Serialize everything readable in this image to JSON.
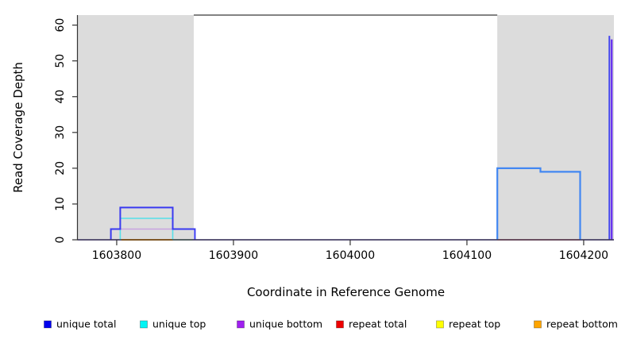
{
  "chart_data": {
    "type": "line",
    "subtype": "step-coverage-plot",
    "title": "",
    "xlabel": "Coordinate in Reference Genome",
    "ylabel": "Read Coverage Depth",
    "xlim": [
      1603766.7,
      1604225.9
    ],
    "ylim": [
      0,
      62.8
    ],
    "x_ticks": [
      1603800,
      1603900,
      1604000,
      1604100,
      1604200
    ],
    "y_ticks": [
      0,
      10,
      20,
      30,
      40,
      50,
      60
    ],
    "grid": false,
    "background_color": "#ffffff",
    "shaded_regions": [
      {
        "name": "left-gray-region",
        "x0": 1603766.7,
        "x1": 1603866,
        "color": "#DCDCDC"
      },
      {
        "name": "right-gray-region",
        "x0": 1604126,
        "x1": 1604225.9,
        "color": "#DCDCDC"
      }
    ],
    "series": [
      {
        "name": "baseline-zero-line",
        "color": "#5A3FE8",
        "width": 1.6,
        "points": [
          [
            1603766.7,
            0
          ],
          [
            1604225.9,
            0
          ]
        ]
      },
      {
        "name": "repeat-bottom-segment",
        "color": "#FF9914",
        "width": 2.0,
        "points": [
          [
            1603804,
            0
          ],
          [
            1603848,
            0
          ]
        ]
      },
      {
        "name": "green-zero-segment",
        "color": "#8FD98F",
        "width": 1.6,
        "points": [
          [
            1603848,
            0
          ],
          [
            1603865,
            0
          ]
        ]
      },
      {
        "name": "repeat-total-segment",
        "color": "#F06A78",
        "width": 1.6,
        "points": [
          [
            1604126,
            0
          ],
          [
            1604197,
            0
          ]
        ]
      },
      {
        "name": "unique-bottom-left",
        "color": "#C8A2E0",
        "width": 1.6,
        "points": [
          [
            1603803,
            3
          ],
          [
            1603848,
            3
          ]
        ]
      },
      {
        "name": "unique-top-left",
        "color": "#55E0E8",
        "width": 1.6,
        "points": [
          [
            1603803,
            0
          ],
          [
            1603803,
            6
          ],
          [
            1603848,
            6
          ],
          [
            1603848,
            0
          ]
        ]
      },
      {
        "name": "unique-total-left",
        "color": "#3A3AF0",
        "width": 2.0,
        "points": [
          [
            1603795,
            0
          ],
          [
            1603795,
            3
          ],
          [
            1603803,
            3
          ],
          [
            1603803,
            9
          ],
          [
            1603848,
            9
          ],
          [
            1603848,
            3
          ],
          [
            1603867,
            3
          ],
          [
            1603867,
            0
          ]
        ]
      },
      {
        "name": "unique-total-right",
        "color": "#4287F2",
        "width": 2.2,
        "points": [
          [
            1604126,
            0
          ],
          [
            1604126,
            20
          ],
          [
            1604163,
            20
          ],
          [
            1604163,
            19
          ],
          [
            1604197,
            19
          ],
          [
            1604197,
            0
          ]
        ]
      },
      {
        "name": "unique-total-spike",
        "color": "#4242F0",
        "width": 2.0,
        "points": [
          [
            1604222,
            0
          ],
          [
            1604222,
            57
          ]
        ]
      },
      {
        "name": "unique-bottom-spike",
        "color": "#6A35EE",
        "width": 2.4,
        "points": [
          [
            1604224,
            0
          ],
          [
            1604224,
            56
          ]
        ]
      }
    ],
    "legend": {
      "position": "bottom",
      "entries": [
        {
          "label": "unique total",
          "color": "#0000EE"
        },
        {
          "label": "unique top",
          "color": "#00F5F5"
        },
        {
          "label": "unique bottom",
          "color": "#A020F0"
        },
        {
          "label": "repeat total",
          "color": "#EE0000"
        },
        {
          "label": "repeat top",
          "color": "#FFFF00"
        },
        {
          "label": "repeat bottom",
          "color": "#FFA500"
        }
      ]
    },
    "axis_color": "#333333",
    "top_border_color": "#5A5A5A"
  }
}
